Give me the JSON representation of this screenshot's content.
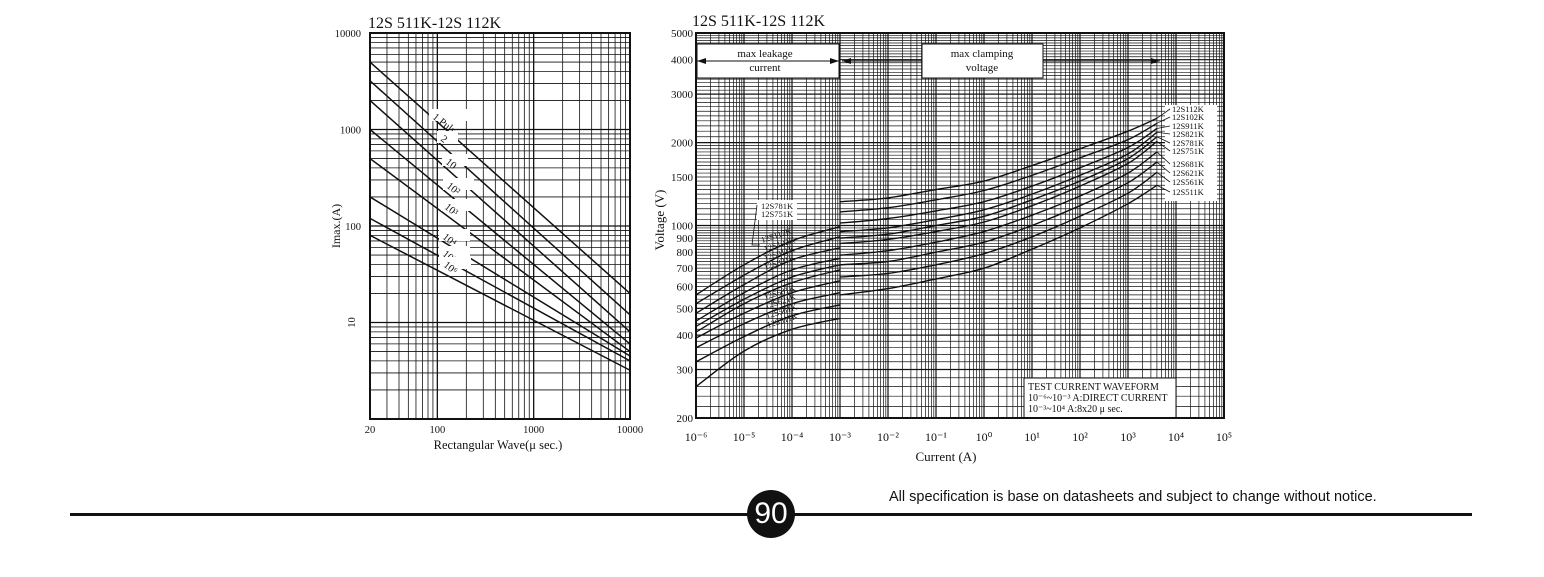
{
  "chart_data": [
    {
      "type": "line",
      "title": "12S 511K-12S 112K",
      "xlabel": "Rectangular Wave(μ sec.)",
      "ylabel": "Imax.(A)",
      "x_scale": "log",
      "y_scale": "log",
      "xlim": [
        20,
        10000
      ],
      "ylim": [
        1,
        10000
      ],
      "x_tick_labels": [
        "20",
        "100",
        "1000",
        "10000"
      ],
      "y_tick_labels": [
        "10000",
        "1000",
        "100",
        "10"
      ],
      "grid": true,
      "series": [
        {
          "name": "1 Pulse",
          "x": [
            20,
            10000
          ],
          "y": [
            5000,
            20
          ]
        },
        {
          "name": "2",
          "x": [
            20,
            10000
          ],
          "y": [
            3200,
            12
          ]
        },
        {
          "name": "10",
          "x": [
            20,
            10000
          ],
          "y": [
            2000,
            8
          ]
        },
        {
          "name": "10²",
          "x": [
            20,
            10000
          ],
          "y": [
            1000,
            6
          ]
        },
        {
          "name": "10³",
          "x": [
            20,
            10000
          ],
          "y": [
            500,
            5
          ]
        },
        {
          "name": "10⁴",
          "x": [
            20,
            10000
          ],
          "y": [
            200,
            4.5
          ]
        },
        {
          "name": "10⁵",
          "x": [
            20,
            10000
          ],
          "y": [
            120,
            4
          ]
        },
        {
          "name": "10⁶",
          "x": [
            20,
            10000
          ],
          "y": [
            80,
            3.2
          ]
        }
      ]
    },
    {
      "type": "line",
      "title": "12S 511K-12S 112K",
      "xlabel": "Current (A)",
      "ylabel": "Voltage (V)",
      "x_scale": "log",
      "y_scale": "log",
      "xlim": [
        1e-06,
        100000
      ],
      "ylim": [
        200,
        5000
      ],
      "x_tick_labels": [
        "10⁻⁶",
        "10⁻⁵",
        "10⁻⁴",
        "10⁻³",
        "10⁻²",
        "10⁻¹",
        "10⁰",
        "10¹",
        "10²",
        "10³",
        "10⁴",
        "10⁵"
      ],
      "y_tick_labels": [
        "5000",
        "4000",
        "3000",
        "2000",
        "1500",
        "1000",
        "900",
        "800",
        "700",
        "600",
        "500",
        "400",
        "300",
        "200"
      ],
      "grid": true,
      "annotations": {
        "leakage": [
          "max leakage",
          "current"
        ],
        "clamping": [
          "max clamping",
          "voltage"
        ],
        "waveform": [
          "TEST CURRENT WAVEFORM",
          "10⁻⁶~10⁻³ A:DIRECT CURRENT",
          "10⁻³~10⁴ A:8x20 μ sec."
        ]
      },
      "leakage_labels": [
        "12S781K",
        "12S751K",
        "12S112K",
        "12S102K",
        "12S911K",
        "12S821K",
        "12S681K",
        "12S621K",
        "12S561K",
        "12S511K"
      ],
      "series": [
        {
          "name": "12S112K",
          "leak": [
            [
              1e-06,
              560
            ],
            [
              1e-05,
              720
            ],
            [
              0.0001,
              880
            ],
            [
              0.001,
              990
            ]
          ],
          "clamp": [
            [
              0.001,
              1220
            ],
            [
              0.01,
              1260
            ],
            [
              0.1,
              1350
            ],
            [
              1,
              1450
            ],
            [
              10,
              1650
            ],
            [
              100,
              1900
            ],
            [
              1000,
              2200
            ],
            [
              4000,
              2450
            ]
          ]
        },
        {
          "name": "12S102K",
          "leak": [
            [
              1e-06,
              520
            ],
            [
              1e-05,
              660
            ],
            [
              0.0001,
              810
            ],
            [
              0.001,
              910
            ]
          ],
          "clamp": [
            [
              0.001,
              1120
            ],
            [
              0.01,
              1160
            ],
            [
              0.1,
              1240
            ],
            [
              1,
              1340
            ],
            [
              10,
              1520
            ],
            [
              100,
              1760
            ],
            [
              1000,
              2050
            ],
            [
              4000,
              2350
            ]
          ]
        },
        {
          "name": "12S911K",
          "leak": [
            [
              1e-06,
              480
            ],
            [
              1e-05,
              610
            ],
            [
              0.0001,
              750
            ],
            [
              0.001,
              830
            ]
          ],
          "clamp": [
            [
              0.001,
              1020
            ],
            [
              0.01,
              1060
            ],
            [
              0.1,
              1130
            ],
            [
              1,
              1220
            ],
            [
              10,
              1390
            ],
            [
              100,
              1620
            ],
            [
              1000,
              1920
            ],
            [
              4000,
              2250
            ]
          ]
        },
        {
          "name": "12S821K",
          "leak": [
            [
              1e-06,
              450
            ],
            [
              1e-05,
              570
            ],
            [
              0.0001,
              690
            ],
            [
              0.001,
              760
            ]
          ],
          "clamp": [
            [
              0.001,
              950
            ],
            [
              0.01,
              980
            ],
            [
              0.1,
              1050
            ],
            [
              1,
              1140
            ],
            [
              10,
              1300
            ],
            [
              100,
              1520
            ],
            [
              1000,
              1820
            ],
            [
              4000,
              2180
            ]
          ]
        },
        {
          "name": "12S781K",
          "leak": [
            [
              1e-06,
              430
            ],
            [
              1e-05,
              540
            ],
            [
              0.0001,
              650
            ],
            [
              0.001,
              720
            ]
          ],
          "clamp": [
            [
              0.001,
              900
            ],
            [
              0.01,
              930
            ],
            [
              0.1,
              1000
            ],
            [
              1,
              1080
            ],
            [
              10,
              1240
            ],
            [
              100,
              1450
            ],
            [
              1000,
              1750
            ],
            [
              4000,
              2100
            ]
          ]
        },
        {
          "name": "12S751K",
          "leak": [
            [
              1e-06,
              410
            ],
            [
              1e-05,
              520
            ],
            [
              0.0001,
              620
            ],
            [
              0.001,
              690
            ]
          ],
          "clamp": [
            [
              0.001,
              860
            ],
            [
              0.01,
              890
            ],
            [
              0.1,
              950
            ],
            [
              1,
              1030
            ],
            [
              10,
              1180
            ],
            [
              100,
              1390
            ],
            [
              1000,
              1680
            ],
            [
              4000,
              2020
            ]
          ]
        },
        {
          "name": "12S681K",
          "leak": [
            [
              1e-06,
              390
            ],
            [
              1e-05,
              480
            ],
            [
              0.0001,
              570
            ],
            [
              0.001,
              630
            ]
          ],
          "clamp": [
            [
              0.001,
              780
            ],
            [
              0.01,
              810
            ],
            [
              0.1,
              870
            ],
            [
              1,
              950
            ],
            [
              10,
              1090
            ],
            [
              100,
              1280
            ],
            [
              1000,
              1550
            ],
            [
              4000,
              1850
            ]
          ]
        },
        {
          "name": "12S621K",
          "leak": [
            [
              1e-06,
              360
            ],
            [
              1e-05,
              440
            ],
            [
              0.0001,
              520
            ],
            [
              0.001,
              570
            ]
          ],
          "clamp": [
            [
              0.001,
              720
            ],
            [
              0.01,
              740
            ],
            [
              0.1,
              800
            ],
            [
              1,
              870
            ],
            [
              10,
              1000
            ],
            [
              100,
              1180
            ],
            [
              1000,
              1430
            ],
            [
              4000,
              1700
            ]
          ]
        },
        {
          "name": "12S561K",
          "leak": [
            [
              1e-06,
              320
            ],
            [
              1e-05,
              395
            ],
            [
              0.0001,
              470
            ],
            [
              0.001,
              515
            ]
          ],
          "clamp": [
            [
              0.001,
              650
            ],
            [
              0.01,
              670
            ],
            [
              0.1,
              720
            ],
            [
              1,
              790
            ],
            [
              10,
              910
            ],
            [
              100,
              1080
            ],
            [
              1000,
              1310
            ],
            [
              4000,
              1560
            ]
          ]
        },
        {
          "name": "12S511K",
          "leak": [
            [
              1e-06,
              260
            ],
            [
              1e-05,
              350
            ],
            [
              0.0001,
              420
            ],
            [
              0.001,
              460
            ]
          ],
          "clamp": [
            [
              0.001,
              560
            ],
            [
              0.01,
              590
            ],
            [
              0.1,
              640
            ],
            [
              1,
              700
            ],
            [
              10,
              820
            ],
            [
              100,
              980
            ],
            [
              1000,
              1200
            ],
            [
              4000,
              1400
            ]
          ]
        }
      ]
    }
  ],
  "footer": {
    "page_number": "90",
    "disclaimer": "All specification is base on datasheets and subject to change without notice."
  }
}
